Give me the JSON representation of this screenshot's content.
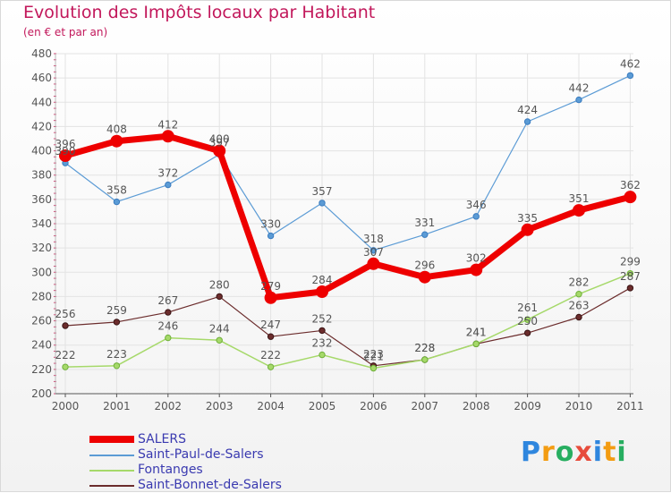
{
  "title": "Evolution des Impôts locaux par Habitant",
  "subtitle": "(en € et par an)",
  "logo_text": "Proxiti",
  "colors": {
    "title": "#c2185b",
    "axis": "#555555",
    "grid": "#e3e3e3",
    "legend_text": "#3a3ab0"
  },
  "chart_data": {
    "type": "line",
    "title": "Evolution des Impôts locaux par Habitant",
    "subtitle": "(en € et par an)",
    "xlabel": "",
    "ylabel": "",
    "x": [
      "2000",
      "2001",
      "2002",
      "2003",
      "2004",
      "2005",
      "2006",
      "2007",
      "2008",
      "2009",
      "2010",
      "2011"
    ],
    "ylim": [
      200,
      480
    ],
    "yticks": [
      200,
      220,
      240,
      260,
      280,
      300,
      320,
      340,
      360,
      380,
      400,
      420,
      440,
      460,
      480
    ],
    "grid": true,
    "legend_position": "bottom-left",
    "series": [
      {
        "name": "SALERS",
        "color": "#ee0000",
        "values": [
          396,
          408,
          412,
          400,
          279,
          284,
          307,
          296,
          302,
          335,
          351,
          362
        ],
        "labels": [
          "396",
          "408",
          "412",
          "400",
          "279",
          "284",
          "307",
          "296",
          "302",
          "335",
          "351",
          "362"
        ]
      },
      {
        "name": "Saint-Paul-de-Salers",
        "color": "#5b9bd5",
        "values": [
          390,
          358,
          372,
          397,
          330,
          357,
          318,
          331,
          346,
          424,
          442,
          462
        ],
        "labels": [
          "390",
          "358",
          "372",
          "397",
          "330",
          "357",
          "318",
          "331",
          "346",
          "424",
          "442",
          "462"
        ]
      },
      {
        "name": "Fontanges",
        "color": "#a6d96a",
        "values": [
          222,
          223,
          246,
          244,
          222,
          232,
          221,
          228,
          241,
          261,
          282,
          299
        ],
        "labels": [
          "222",
          "223",
          "246",
          "244",
          "222",
          "232",
          "221",
          "228",
          "241",
          "261",
          "282",
          "299"
        ]
      },
      {
        "name": "Saint-Bonnet-de-Salers",
        "color": "#6b2c2c",
        "values": [
          256,
          259,
          267,
          280,
          247,
          252,
          223,
          228,
          241,
          250,
          263,
          287
        ],
        "labels": [
          "256",
          "259",
          "267",
          "280",
          "247",
          "252",
          "223",
          "228",
          "241",
          "250",
          "263",
          "287"
        ]
      }
    ]
  }
}
